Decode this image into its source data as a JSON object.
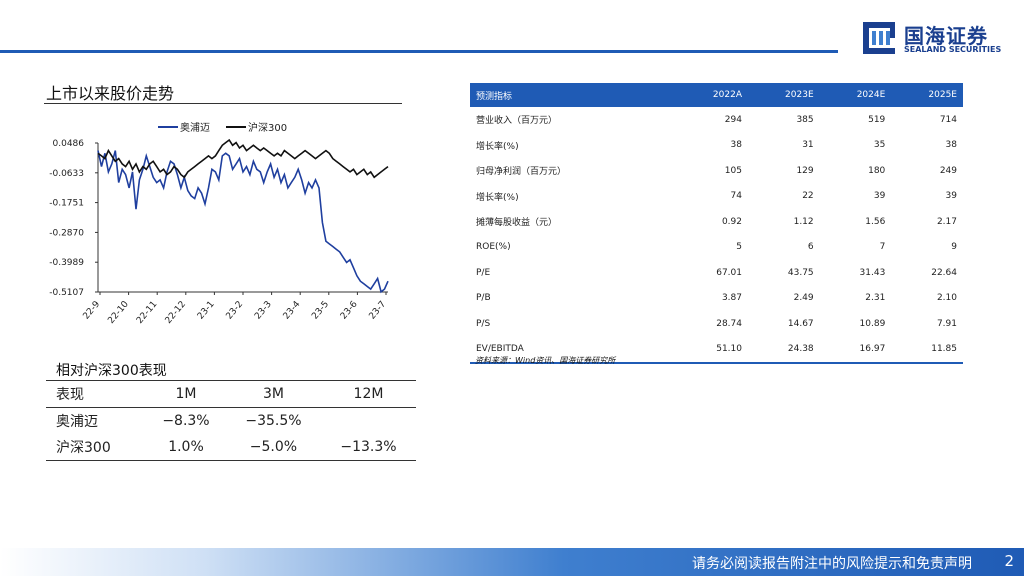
{
  "brand": {
    "cn": "国海证券",
    "en": "SEALAND SECURITIES",
    "color": "#1f5bb5"
  },
  "section_title": "上市以来股价走势",
  "chart_data": {
    "type": "line",
    "legend": [
      "奥浦迈",
      "沪深300"
    ],
    "legend_position": "top",
    "y_ticks": [
      "0.0486",
      "-0.0633",
      "-0.1751",
      "-0.2870",
      "-0.3989",
      "-0.5107"
    ],
    "ylim": [
      -0.5107,
      0.0486
    ],
    "x_ticks": [
      "22-9",
      "22-10",
      "22-11",
      "22-12",
      "23-1",
      "23-2",
      "23-3",
      "23-4",
      "23-5",
      "23-6",
      "23-7"
    ],
    "series": [
      {
        "name": "奥浦迈",
        "color": "#1f3f9f",
        "values": [
          0.02,
          -0.04,
          0.01,
          -0.06,
          -0.03,
          0.02,
          -0.1,
          -0.05,
          -0.07,
          -0.12,
          -0.06,
          -0.2,
          -0.09,
          -0.05,
          0.0,
          -0.04,
          -0.08,
          -0.1,
          -0.09,
          -0.12,
          -0.06,
          -0.02,
          -0.03,
          -0.07,
          -0.12,
          -0.08,
          -0.13,
          -0.15,
          -0.16,
          -0.12,
          -0.14,
          -0.18,
          -0.12,
          -0.05,
          -0.06,
          -0.09,
          0.0,
          0.01,
          0.0,
          -0.05,
          -0.03,
          -0.01,
          -0.06,
          -0.04,
          -0.07,
          -0.02,
          -0.05,
          -0.06,
          -0.1,
          -0.06,
          -0.03,
          -0.08,
          -0.05,
          -0.1,
          -0.07,
          -0.12,
          -0.1,
          -0.08,
          -0.05,
          -0.09,
          -0.14,
          -0.1,
          -0.12,
          -0.09,
          -0.12,
          -0.25,
          -0.32,
          -0.33,
          -0.34,
          -0.35,
          -0.36,
          -0.38,
          -0.4,
          -0.39,
          -0.42,
          -0.45,
          -0.47,
          -0.48,
          -0.49,
          -0.5,
          -0.48,
          -0.46,
          -0.51,
          -0.5,
          -0.47
        ]
      },
      {
        "name": "沪深300",
        "color": "#111111",
        "values": [
          0.01,
          0.0,
          -0.01,
          0.02,
          0.0,
          -0.02,
          -0.01,
          -0.03,
          -0.04,
          -0.02,
          -0.05,
          -0.03,
          -0.06,
          -0.04,
          -0.05,
          -0.03,
          -0.02,
          -0.04,
          -0.06,
          -0.05,
          -0.07,
          -0.06,
          -0.04,
          -0.05,
          -0.07,
          -0.08,
          -0.06,
          -0.05,
          -0.04,
          -0.03,
          -0.02,
          -0.01,
          0.0,
          -0.01,
          0.0,
          0.02,
          0.04,
          0.05,
          0.06,
          0.04,
          0.05,
          0.03,
          0.04,
          0.02,
          0.03,
          0.04,
          0.03,
          0.02,
          0.03,
          0.02,
          0.01,
          0.0,
          0.01,
          0.0,
          0.02,
          0.01,
          0.0,
          -0.01,
          0.0,
          0.01,
          0.02,
          0.01,
          0.0,
          -0.01,
          0.0,
          0.01,
          0.02,
          0.01,
          -0.01,
          -0.02,
          -0.03,
          -0.04,
          -0.05,
          -0.06,
          -0.05,
          -0.07,
          -0.06,
          -0.05,
          -0.07,
          -0.06,
          -0.08,
          -0.07,
          -0.06,
          -0.05,
          -0.04
        ]
      }
    ]
  },
  "perf": {
    "title": "相对沪深300表现",
    "headers": [
      "表现",
      "1M",
      "3M",
      "12M"
    ],
    "rows": [
      [
        "奥浦迈",
        "−8.3%",
        "−35.5%",
        ""
      ],
      [
        "沪深300",
        "1.0%",
        "−5.0%",
        "−13.3%"
      ]
    ]
  },
  "forecast": {
    "headers": [
      "预测指标",
      "2022A",
      "2023E",
      "2024E",
      "2025E"
    ],
    "rows": [
      [
        "营业收入（百万元）",
        "294",
        "385",
        "519",
        "714"
      ],
      [
        "增长率(%)",
        "38",
        "31",
        "35",
        "38"
      ],
      [
        "归母净利润（百万元）",
        "105",
        "129",
        "180",
        "249"
      ],
      [
        "增长率(%)",
        "74",
        "22",
        "39",
        "39"
      ],
      [
        "摊薄每股收益（元）",
        "0.92",
        "1.12",
        "1.56",
        "2.17"
      ],
      [
        "ROE(%)",
        "5",
        "6",
        "7",
        "9"
      ],
      [
        "P/E",
        "67.01",
        "43.75",
        "31.43",
        "22.64"
      ],
      [
        "P/B",
        "3.87",
        "2.49",
        "2.31",
        "2.10"
      ],
      [
        "P/S",
        "28.74",
        "14.67",
        "10.89",
        "7.91"
      ],
      [
        "EV/EBITDA",
        "51.10",
        "24.38",
        "16.97",
        "11.85"
      ]
    ],
    "source": "资料来源：Wind资讯、国海证券研究所"
  },
  "footer": {
    "disclaimer": "请务必阅读报告附注中的风险提示和免责声明",
    "page": "2"
  }
}
